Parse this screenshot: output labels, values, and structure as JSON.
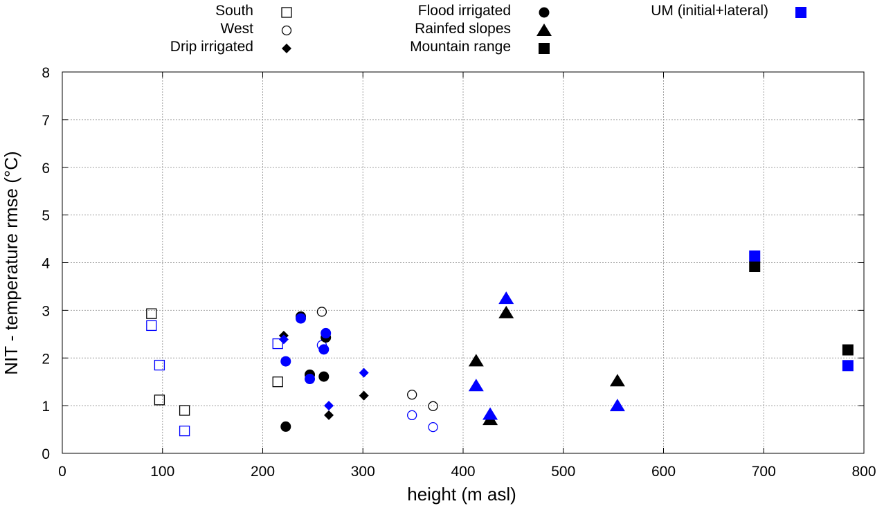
{
  "chart_data": {
    "type": "scatter",
    "title": "",
    "xlabel": "height (m asl)",
    "ylabel": "NIT - temperature rmse (°C)",
    "xlim": [
      0,
      800
    ],
    "ylim": [
      0,
      8
    ],
    "xticks": [
      0,
      100,
      200,
      300,
      400,
      500,
      600,
      700,
      800
    ],
    "yticks": [
      0,
      1,
      2,
      3,
      4,
      5,
      6,
      7,
      8
    ],
    "grid": true,
    "legend_position": "top, outside plot area",
    "colors": {
      "baseline": "#000000",
      "um": "#0000ff"
    },
    "legend": [
      {
        "label": "South",
        "marker": "square-open",
        "color": "#000000"
      },
      {
        "label": "West",
        "marker": "circle-open",
        "color": "#000000"
      },
      {
        "label": "Drip irrigated",
        "marker": "diamond",
        "color": "#000000"
      },
      {
        "label": "Flood irrigated",
        "marker": "circle",
        "color": "#000000"
      },
      {
        "label": "Rainfed slopes",
        "marker": "triangle",
        "color": "#000000"
      },
      {
        "label": "Mountain range",
        "marker": "square",
        "color": "#000000"
      },
      {
        "label": "UM (initial+lateral)",
        "marker": "square",
        "color": "#0000ff"
      }
    ],
    "series": [
      {
        "name": "South",
        "marker": "square-open",
        "color": "#000000",
        "points": [
          [
            89,
            2.93
          ],
          [
            97,
            1.12
          ],
          [
            122,
            0.9
          ],
          [
            215,
            1.5
          ]
        ]
      },
      {
        "name": "South (UM)",
        "marker": "square-open",
        "color": "#0000ff",
        "points": [
          [
            89,
            2.68
          ],
          [
            97,
            1.85
          ],
          [
            122,
            0.47
          ],
          [
            215,
            2.3
          ]
        ]
      },
      {
        "name": "West",
        "marker": "circle-open",
        "color": "#000000",
        "points": [
          [
            259,
            2.97
          ],
          [
            349,
            1.23
          ],
          [
            370,
            0.99
          ]
        ]
      },
      {
        "name": "West (UM)",
        "marker": "circle-open",
        "color": "#0000ff",
        "points": [
          [
            259,
            2.27
          ],
          [
            349,
            0.8
          ],
          [
            370,
            0.55
          ]
        ]
      },
      {
        "name": "Drip irrigated",
        "marker": "diamond",
        "color": "#000000",
        "points": [
          [
            221,
            2.47
          ],
          [
            266,
            0.8
          ],
          [
            301,
            1.21
          ]
        ]
      },
      {
        "name": "Drip irrigated (UM)",
        "marker": "diamond",
        "color": "#0000ff",
        "points": [
          [
            221,
            2.39
          ],
          [
            266,
            1.0
          ],
          [
            301,
            1.69
          ]
        ]
      },
      {
        "name": "Flood irrigated",
        "marker": "circle",
        "color": "#000000",
        "points": [
          [
            223,
            0.56
          ],
          [
            238,
            2.87
          ],
          [
            247,
            1.65
          ],
          [
            261,
            1.61
          ],
          [
            263,
            2.43
          ]
        ]
      },
      {
        "name": "Flood irrigated (UM)",
        "marker": "circle",
        "color": "#0000ff",
        "points": [
          [
            223,
            1.93
          ],
          [
            238,
            2.83
          ],
          [
            247,
            1.56
          ],
          [
            261,
            2.18
          ],
          [
            263,
            2.52
          ]
        ]
      },
      {
        "name": "Rainfed slopes",
        "marker": "triangle",
        "color": "#000000",
        "points": [
          [
            413,
            1.94
          ],
          [
            427,
            0.71
          ],
          [
            443,
            2.95
          ],
          [
            554,
            1.52
          ]
        ]
      },
      {
        "name": "Rainfed slopes (UM)",
        "marker": "triangle",
        "color": "#0000ff",
        "points": [
          [
            413,
            1.42
          ],
          [
            427,
            0.82
          ],
          [
            443,
            3.25
          ],
          [
            554,
            1.0
          ]
        ]
      },
      {
        "name": "Mountain range",
        "marker": "square",
        "color": "#000000",
        "points": [
          [
            691,
            3.92
          ],
          [
            784,
            2.17
          ]
        ]
      },
      {
        "name": "Mountain range (UM)",
        "marker": "square",
        "color": "#0000ff",
        "points": [
          [
            691,
            4.14
          ],
          [
            784,
            1.84
          ]
        ]
      }
    ]
  }
}
